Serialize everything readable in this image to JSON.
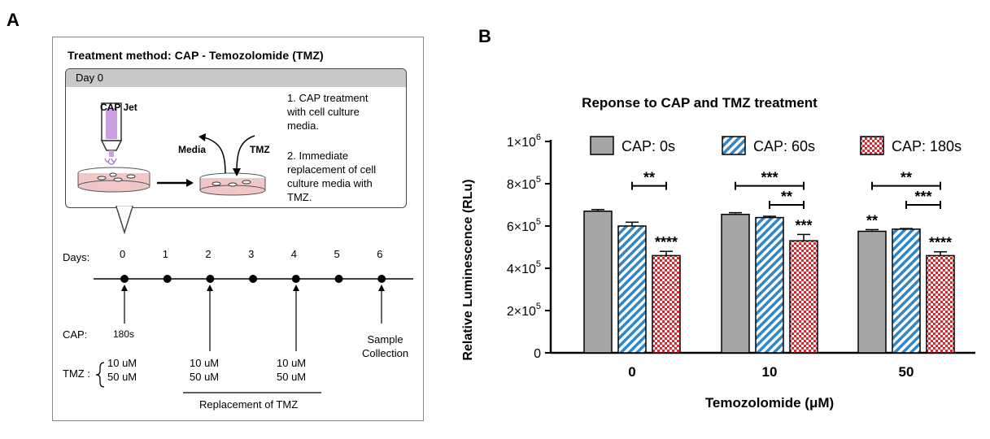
{
  "panel_a": {
    "letter": "A",
    "title": "Treatment method: CAP - Temozolomide (TMZ)",
    "day0_label": "Day 0",
    "cap_jet_label": "CAP Jet",
    "media_label": "Media",
    "tmz_label": "TMZ",
    "step1": [
      "1. CAP treatment",
      "with cell culture",
      "media."
    ],
    "step2": [
      "2. Immediate",
      "replacement of cell",
      "culture media with",
      "TMZ."
    ],
    "days_label": "Days:",
    "days": [
      "0",
      "1",
      "2",
      "3",
      "4",
      "5",
      "6"
    ],
    "cap_row_label": "CAP:",
    "cap_dose": "180s",
    "sample_collection": [
      "Sample",
      "Collection"
    ],
    "tmz_row_label": "TMZ :",
    "tmz_doses": [
      "10 uM",
      "50 uM"
    ],
    "replacement_doses_day2": [
      "10 uM",
      "50 uM"
    ],
    "replacement_doses_day4": [
      "10 uM",
      "50 uM"
    ],
    "replacement_label": "Replacement of TMZ"
  },
  "panel_b": {
    "letter": "B"
  },
  "colors": {
    "cap0": "#a6a6a6",
    "cap60": "#2f86c8",
    "cap180": "#d8282e",
    "axis": "#000000"
  },
  "chart_data": {
    "type": "bar",
    "title": "Reponse to CAP and TMZ treatment",
    "xlabel": "Temozolomide (μM)",
    "ylabel": "Relative Luminescence (RLu)",
    "categories": [
      "0",
      "10",
      "50"
    ],
    "ylim": [
      0,
      1000000
    ],
    "yticks": [
      {
        "value": 0,
        "base": "0",
        "exp": ""
      },
      {
        "value": 200000,
        "base": "2×10",
        "exp": "5"
      },
      {
        "value": 400000,
        "base": "4×10",
        "exp": "5"
      },
      {
        "value": 600000,
        "base": "6×10",
        "exp": "5"
      },
      {
        "value": 800000,
        "base": "8×10",
        "exp": "5"
      },
      {
        "value": 1000000,
        "base": "1×10",
        "exp": "6"
      }
    ],
    "legend_position": "top",
    "series": [
      {
        "name": "CAP: 0s",
        "pattern": "solid",
        "values": [
          670000,
          655000,
          575000
        ],
        "errors": [
          8000,
          8000,
          8000
        ],
        "labels": [
          "",
          "",
          "**"
        ]
      },
      {
        "name": "CAP: 60s",
        "pattern": "stripes",
        "values": [
          600000,
          640000,
          585000
        ],
        "errors": [
          18000,
          6000,
          3000
        ],
        "labels": [
          "",
          "",
          ""
        ]
      },
      {
        "name": "CAP: 180s",
        "pattern": "checker",
        "values": [
          460000,
          530000,
          460000
        ],
        "errors": [
          20000,
          30000,
          18000
        ],
        "labels": [
          "****",
          "***",
          "****"
        ]
      }
    ],
    "brackets": [
      {
        "category": 0,
        "from": 1,
        "to": 2,
        "value": 790000,
        "label": "**"
      },
      {
        "category": 1,
        "from": 0,
        "to": 2,
        "value": 790000,
        "label": "***"
      },
      {
        "category": 1,
        "from": 1,
        "to": 2,
        "value": 700000,
        "label": "**"
      },
      {
        "category": 2,
        "from": 0,
        "to": 2,
        "value": 790000,
        "label": "**"
      },
      {
        "category": 2,
        "from": 1,
        "to": 2,
        "value": 700000,
        "label": "***"
      }
    ]
  }
}
